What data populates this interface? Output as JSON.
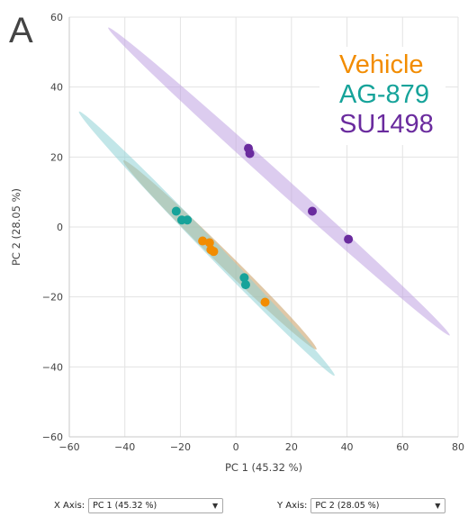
{
  "panel_label": "A",
  "legend": [
    {
      "label": "Vehicle",
      "color": "#F28C00"
    },
    {
      "label": "AG-879",
      "color": "#16A39A"
    },
    {
      "label": "SU1498",
      "color": "#6A2B9E"
    }
  ],
  "controls": {
    "x_axis_label": "X Axis:",
    "x_axis_value": "PC 1 (45.32 %)",
    "y_axis_label": "Y Axis:",
    "y_axis_value": "PC 2 (28.05 %)",
    "caret_icon": "chevron-down-icon"
  },
  "chart_data": {
    "type": "scatter",
    "xlabel": "PC 1 (45.32 %)",
    "ylabel": "PC 2 (28.05 %)",
    "xlim": [
      -60,
      80
    ],
    "ylim": [
      -60,
      60
    ],
    "xticks": [
      -60,
      -40,
      -20,
      0,
      20,
      40,
      60,
      80
    ],
    "yticks": [
      -60,
      -40,
      -20,
      0,
      20,
      40,
      60
    ],
    "grid": true,
    "legend_position": "top-right",
    "series": [
      {
        "name": "Vehicle",
        "color": "#F28C00",
        "ellipse_color": "#C69A5E",
        "points": [
          [
            -12,
            -4
          ],
          [
            -9.5,
            -4.5
          ],
          [
            -9,
            -6.5
          ],
          [
            -8,
            -7
          ],
          [
            10.5,
            -21.5
          ]
        ],
        "ellipse_end_points": [
          [
            -40.5,
            19
          ],
          [
            29,
            -35
          ]
        ]
      },
      {
        "name": "AG-879",
        "color": "#16A39A",
        "ellipse_color": "#8FD1D5",
        "points": [
          [
            -21.5,
            4.5
          ],
          [
            -19.5,
            2
          ],
          [
            -17.5,
            2
          ],
          [
            3,
            -14.5
          ],
          [
            3.5,
            -16.5
          ]
        ],
        "ellipse_end_points": [
          [
            -56.5,
            33
          ],
          [
            35.5,
            -42.5
          ]
        ]
      },
      {
        "name": "SU1498",
        "color": "#6A2B9E",
        "ellipse_color": "#BFA2E2",
        "points": [
          [
            4.5,
            22.5
          ],
          [
            5,
            21
          ],
          [
            27.5,
            4.5
          ],
          [
            40.5,
            -3.5
          ]
        ],
        "ellipse_end_points": [
          [
            -46,
            57
          ],
          [
            77,
            -31
          ]
        ]
      }
    ]
  }
}
